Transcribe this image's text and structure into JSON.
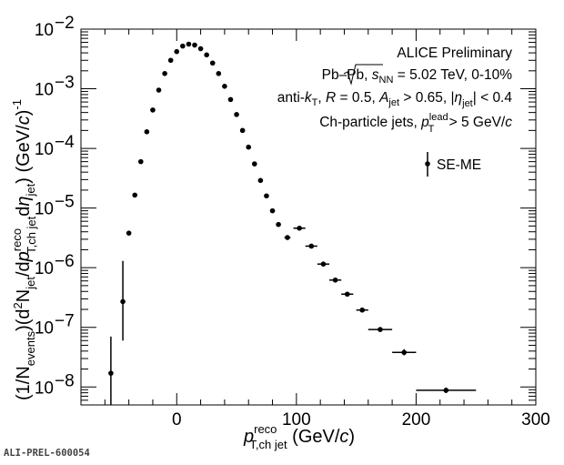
{
  "chart_data": {
    "type": "scatter",
    "x_scale": "linear",
    "y_scale": "log",
    "xlim": [
      -80,
      300
    ],
    "ylim": [
      5e-09,
      0.01
    ],
    "x_ticks": [
      {
        "value": 0,
        "label": "0"
      },
      {
        "value": 100,
        "label": "100"
      },
      {
        "value": 200,
        "label": "200"
      },
      {
        "value": 300,
        "label": "300"
      }
    ],
    "y_ticks": [
      {
        "value": 1e-08,
        "base": "10",
        "exp": "−8"
      },
      {
        "value": 1e-07,
        "base": "10",
        "exp": "−7"
      },
      {
        "value": 1e-06,
        "base": "10",
        "exp": "−6"
      },
      {
        "value": 1e-05,
        "base": "10",
        "exp": "−5"
      },
      {
        "value": 0.0001,
        "base": "10",
        "exp": "−4"
      },
      {
        "value": 0.001,
        "base": "10",
        "exp": "−3"
      },
      {
        "value": 0.01,
        "base": "10",
        "exp": "−2"
      }
    ],
    "xlabel": {
      "main": "p",
      "sup": "reco",
      "sub": "T,ch jet",
      "unit_open": " (GeV/",
      "unit_c": "c",
      "unit_close": ")"
    },
    "ylabel": {
      "p1": "(1/N",
      "sub1": "events",
      "p2": ")(d",
      "sup2": "2",
      "p3": "N",
      "sub3": "jet",
      "p4": "/d",
      "p5": "p",
      "sup5": "reco",
      "sub5": "T,ch jet",
      "p6": "d",
      "p7": "η",
      "sub7": "jet",
      "p8": ") (GeV/",
      "p9": "c",
      "p10": ")",
      "sup10": "-1"
    },
    "annotations": [
      {
        "id": "alice",
        "text": "ALICE Preliminary"
      },
      {
        "id": "system",
        "p1": "Pb–Pb, ",
        "s": "s",
        "s_sub": "NN",
        "p2": " = 5.02 TeV, 0-10%"
      },
      {
        "id": "algo",
        "p1": "anti-",
        "k": "k",
        "k_sub": "T",
        "p2": ", ",
        "R": "R",
        "p3": " = 0.5, ",
        "A": "A",
        "A_sub": "jet",
        "p4": " > 0.65, |",
        "eta": "η",
        "eta_sub": "jet",
        "p5": "| < 0.4"
      },
      {
        "id": "cuts",
        "p1": "Ch-particle jets, ",
        "p": "p",
        "p_sup": "lead",
        "p_sub": "T",
        "p2": " > 5 GeV/",
        "c": "c"
      }
    ],
    "series": [
      {
        "name": "SE-ME",
        "color": "#000000",
        "points": [
          {
            "x": -55,
            "y": 1.7e-08,
            "xerr": 0,
            "ylo": 1e-09,
            "yhi": 7e-08
          },
          {
            "x": -45,
            "y": 2.7e-07,
            "xerr": 0,
            "ylo": 6e-08,
            "yhi": 1.3e-06
          },
          {
            "x": -40,
            "y": 3.8e-06,
            "xerr": 0,
            "ylo": 3.8e-06,
            "yhi": 3.8e-06
          },
          {
            "x": -35,
            "y": 1.65e-05,
            "xerr": 0,
            "ylo": 1.65e-05,
            "yhi": 1.65e-05
          },
          {
            "x": -30,
            "y": 6e-05,
            "xerr": 0,
            "ylo": 6e-05,
            "yhi": 6e-05
          },
          {
            "x": -25,
            "y": 0.00019,
            "xerr": 0,
            "ylo": 0.00019,
            "yhi": 0.00019
          },
          {
            "x": -20,
            "y": 0.00044,
            "xerr": 0,
            "ylo": 0.00044,
            "yhi": 0.00044
          },
          {
            "x": -15,
            "y": 0.00095,
            "xerr": 0,
            "ylo": 0.00095,
            "yhi": 0.00095
          },
          {
            "x": -10,
            "y": 0.0018,
            "xerr": 0,
            "ylo": 0.0018,
            "yhi": 0.0018
          },
          {
            "x": -5,
            "y": 0.003,
            "xerr": 0,
            "ylo": 0.003,
            "yhi": 0.003
          },
          {
            "x": 0,
            "y": 0.0042,
            "xerr": 0,
            "ylo": 0.0042,
            "yhi": 0.0042
          },
          {
            "x": 5,
            "y": 0.0052,
            "xerr": 0,
            "ylo": 0.0052,
            "yhi": 0.0052
          },
          {
            "x": 10,
            "y": 0.0056,
            "xerr": 0,
            "ylo": 0.0056,
            "yhi": 0.0056
          },
          {
            "x": 15,
            "y": 0.0054,
            "xerr": 0,
            "ylo": 0.0054,
            "yhi": 0.0054
          },
          {
            "x": 20,
            "y": 0.0047,
            "xerr": 0,
            "ylo": 0.0047,
            "yhi": 0.0047
          },
          {
            "x": 25,
            "y": 0.0037,
            "xerr": 0,
            "ylo": 0.0037,
            "yhi": 0.0037
          },
          {
            "x": 30,
            "y": 0.0027,
            "xerr": 0,
            "ylo": 0.0027,
            "yhi": 0.0027
          },
          {
            "x": 35,
            "y": 0.0018,
            "xerr": 0,
            "ylo": 0.0018,
            "yhi": 0.0018
          },
          {
            "x": 40,
            "y": 0.0011,
            "xerr": 0,
            "ylo": 0.0011,
            "yhi": 0.0011
          },
          {
            "x": 45,
            "y": 0.00066,
            "xerr": 0,
            "ylo": 0.00066,
            "yhi": 0.00066
          },
          {
            "x": 50,
            "y": 0.00037,
            "xerr": 0,
            "ylo": 0.00037,
            "yhi": 0.00037
          },
          {
            "x": 55,
            "y": 0.0002,
            "xerr": 0,
            "ylo": 0.0002,
            "yhi": 0.0002
          },
          {
            "x": 60,
            "y": 0.000105,
            "xerr": 0,
            "ylo": 0.000105,
            "yhi": 0.000105
          },
          {
            "x": 65,
            "y": 5.5e-05,
            "xerr": 0,
            "ylo": 5.5e-05,
            "yhi": 5.5e-05
          },
          {
            "x": 70,
            "y": 2.9e-05,
            "xerr": 0,
            "ylo": 2.9e-05,
            "yhi": 2.9e-05
          },
          {
            "x": 75,
            "y": 1.6e-05,
            "xerr": 0,
            "ylo": 1.6e-05,
            "yhi": 1.6e-05
          },
          {
            "x": 80,
            "y": 9e-06,
            "xerr": 0,
            "ylo": 9e-06,
            "yhi": 9e-06
          },
          {
            "x": 85,
            "y": 5.3e-06,
            "xerr": 0,
            "ylo": 5.3e-06,
            "yhi": 5.3e-06
          },
          {
            "x": 92.5,
            "y": 3.2e-06,
            "xerr": 2.5,
            "ylo": 3.2e-06,
            "yhi": 3.2e-06
          },
          {
            "x": 102.5,
            "y": 4.6e-06,
            "xerr": 5,
            "ylo": 4.6e-06,
            "yhi": 4.6e-06
          },
          {
            "x": 112.5,
            "y": 2.3e-06,
            "xerr": 5,
            "ylo": 2.3e-06,
            "yhi": 2.3e-06
          },
          {
            "x": 122.5,
            "y": 1.15e-06,
            "xerr": 5,
            "ylo": 1.15e-06,
            "yhi": 1.15e-06
          },
          {
            "x": 132.5,
            "y": 6.2e-07,
            "xerr": 5,
            "ylo": 6.2e-07,
            "yhi": 6.2e-07
          },
          {
            "x": 142.5,
            "y": 3.6e-07,
            "xerr": 5,
            "ylo": 3.6e-07,
            "yhi": 3.6e-07
          },
          {
            "x": 155,
            "y": 1.95e-07,
            "xerr": 5,
            "ylo": 1.95e-07,
            "yhi": 1.95e-07
          },
          {
            "x": 170,
            "y": 9.2e-08,
            "xerr": 10,
            "ylo": 9.2e-08,
            "yhi": 9.2e-08
          },
          {
            "x": 190,
            "y": 3.8e-08,
            "xerr": 10,
            "ylo": 3.4e-08,
            "yhi": 4.3e-08
          },
          {
            "x": 225,
            "y": 8.8e-09,
            "xerr": 25,
            "ylo": 7.9e-09,
            "yhi": 9.8e-09
          }
        ]
      }
    ],
    "legend": {
      "position": "top-right",
      "entries": [
        "SE-ME"
      ]
    }
  },
  "footer": {
    "preliminary_id": "ALI-PREL-600054"
  }
}
